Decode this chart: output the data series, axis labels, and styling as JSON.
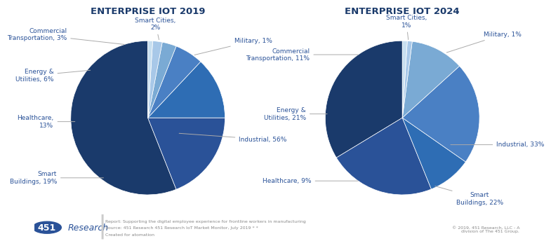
{
  "title_2019": "ENTERPRISE IOT 2019",
  "title_2024": "ENTERPRISE IOT 2024",
  "chart2019": {
    "values": [
      56,
      19,
      13,
      6,
      3,
      2,
      1
    ],
    "colors": [
      "#1a3a6b",
      "#2a5298",
      "#2e6db4",
      "#4a80c4",
      "#7aaad4",
      "#a8c8e8",
      "#c8dff0"
    ]
  },
  "chart2024": {
    "values": [
      33,
      22,
      9,
      21,
      11,
      1,
      1
    ],
    "colors": [
      "#1a3a6b",
      "#2a5298",
      "#2e6db4",
      "#4a80c4",
      "#7aaad4",
      "#a8c8e8",
      "#c8dff0"
    ]
  },
  "footer_line1": "Report: Supporting the digital employee experience for frontline workers in manufacturing",
  "footer_line2": "Source: 451 Research 451 Research IoT Market Monitor, July 2019 * *",
  "footer_line3": "Created for atomation",
  "footer_right": "© 2019, 451 Research, LLC - A\ndivision of The 451 Group.",
  "bg_color": "#ffffff",
  "title_color": "#1a3a6b",
  "label_color": "#2a5298",
  "logo_circle_color": "#2a5298",
  "logo_text": "451",
  "logo_research": "Research",
  "label_cfg_2019": [
    [
      "Industrial, 56%",
      [
        0.38,
        -0.2
      ],
      [
        1.18,
        -0.28
      ],
      "left"
    ],
    [
      "Smart\nBuildings, 19%",
      [
        -0.55,
        -0.78
      ],
      [
        -1.18,
        -0.78
      ],
      "right"
    ],
    [
      "Healthcare,\n13%",
      [
        -0.92,
        -0.05
      ],
      [
        -1.22,
        -0.05
      ],
      "right"
    ],
    [
      "Energy &\nUtilities, 6%",
      [
        -0.72,
        0.62
      ],
      [
        -1.22,
        0.55
      ],
      "right"
    ],
    [
      "Commercial\nTransportation, 3%",
      [
        -0.28,
        0.95
      ],
      [
        -1.05,
        1.08
      ],
      "right"
    ],
    [
      "Smart Cities,\n2%",
      [
        0.15,
        0.99
      ],
      [
        0.1,
        1.22
      ],
      "center"
    ],
    [
      "Military, 1%",
      [
        0.58,
        0.81
      ],
      [
        1.12,
        1.0
      ],
      "left"
    ]
  ],
  "label_cfg_2024": [
    [
      "Industrial, 33%",
      [
        0.6,
        -0.35
      ],
      [
        1.22,
        -0.35
      ],
      "left"
    ],
    [
      "Smart\nBuildings, 22%",
      [
        0.4,
        -0.88
      ],
      [
        1.0,
        -1.05
      ],
      "center"
    ],
    [
      "Healthcare, 9%",
      [
        -0.55,
        -0.82
      ],
      [
        -1.18,
        -0.82
      ],
      "right"
    ],
    [
      "Energy &\nUtilities, 21%",
      [
        -0.95,
        0.05
      ],
      [
        -1.25,
        0.05
      ],
      "right"
    ],
    [
      "Commercial\nTransportation, 11%",
      [
        -0.55,
        0.82
      ],
      [
        -1.2,
        0.82
      ],
      "right"
    ],
    [
      "Smart Cities,\n1%",
      [
        0.08,
        0.99
      ],
      [
        0.05,
        1.25
      ],
      "center"
    ],
    [
      "Military, 1%",
      [
        0.55,
        0.84
      ],
      [
        1.05,
        1.08
      ],
      "left"
    ]
  ]
}
